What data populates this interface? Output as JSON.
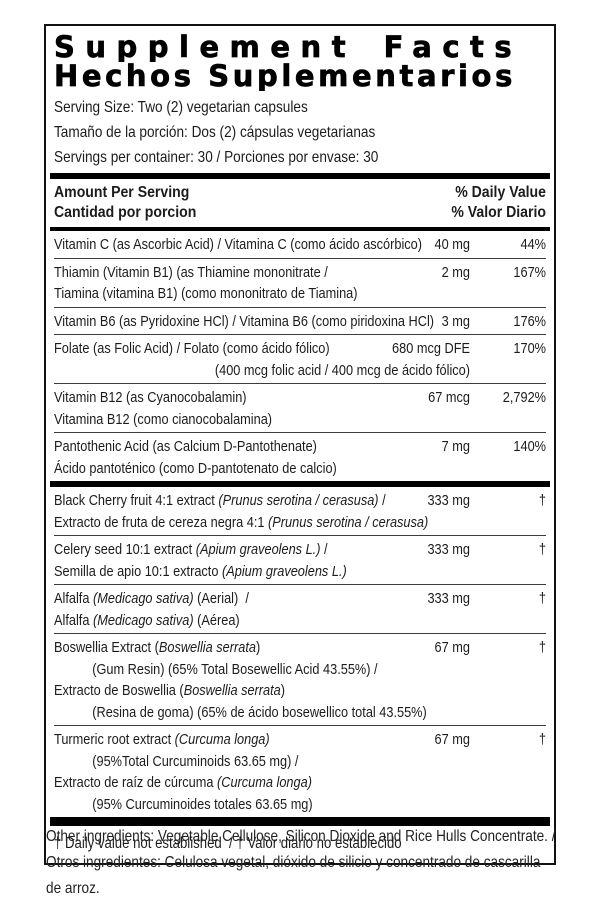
{
  "colors": {
    "ink": "#000000",
    "background": "#ffffff"
  },
  "title": {
    "line1": "Supplement Facts",
    "line2": "Hechos Suplementarios"
  },
  "serving": {
    "lines": [
      "Serving Size: Two (2) vegetarian capsules",
      "Tamaño de la porción: Dos (2) cápsulas vegetarianas",
      "Servings per container: 30 / Porciones por envase: 30"
    ]
  },
  "header": {
    "amount_en": "Amount Per Serving",
    "amount_es": "Cantidad por porcion",
    "dv_en": "% Daily Value",
    "dv_es": "% Valor Diario"
  },
  "sections": [
    {
      "rows": [
        {
          "lines": [
            {
              "segs": [
                {
                  "t": "Vitamin C (as Ascorbic Acid) / Vitamina C (como ácido ascórbico)"
                }
              ]
            }
          ],
          "amount": "40 mg",
          "pct": "44%"
        },
        {
          "lines": [
            {
              "segs": [
                {
                  "t": "Thiamin (Vitamin B1) (as Thiamine mononitrate /"
                }
              ]
            },
            {
              "segs": [
                {
                  "t": "Tiamina (vitamina B1) (como mononitrato de Tiamina)"
                }
              ]
            }
          ],
          "amount": "2 mg",
          "pct": "167%"
        },
        {
          "lines": [
            {
              "segs": [
                {
                  "t": "Vitamin B6 (as Pyridoxine HCl) / Vitamina B6 (como piridoxina HCl)"
                }
              ]
            }
          ],
          "amount": "3 mg",
          "pct": "176%"
        },
        {
          "lines": [
            {
              "segs": [
                {
                  "t": "Folate (as Folic Acid) / Folato (como ácido fólico)"
                }
              ]
            },
            {
              "segs": [
                {
                  "t": "(400 mcg folic acid / 400 mcg de ácido fólico)"
                }
              ],
              "align": "right"
            }
          ],
          "amount": "680 mcg DFE",
          "pct": "170%"
        },
        {
          "lines": [
            {
              "segs": [
                {
                  "t": "Vitamin B12 (as Cyanocobalamin)"
                }
              ]
            },
            {
              "segs": [
                {
                  "t": "Vitamina B12 (como cianocobalamina)"
                }
              ]
            }
          ],
          "amount": "67 mcg",
          "pct": "2,792%"
        },
        {
          "lines": [
            {
              "segs": [
                {
                  "t": "Pantothenic Acid (as Calcium D-Pantothenate)"
                }
              ]
            },
            {
              "segs": [
                {
                  "t": "Ácido pantoténico (como D-pantotenato de calcio)"
                }
              ]
            }
          ],
          "amount": "7 mg",
          "pct": "140%"
        }
      ]
    },
    {
      "rows": [
        {
          "lines": [
            {
              "segs": [
                {
                  "t": "Black Cherry fruit 4:1 extract "
                },
                {
                  "t": "(Prunus serotina / cerasusa)",
                  "i": true
                },
                {
                  "t": " /"
                }
              ]
            },
            {
              "segs": [
                {
                  "t": "Extracto de fruta de cereza negra 4:1 "
                },
                {
                  "t": "(Prunus serotina / cerasusa)",
                  "i": true
                }
              ]
            }
          ],
          "amount": "333 mg",
          "pct": "†"
        },
        {
          "lines": [
            {
              "segs": [
                {
                  "t": "Celery seed 10:1 extract "
                },
                {
                  "t": "(Apium graveolens L.)",
                  "i": true
                },
                {
                  "t": " /"
                }
              ]
            },
            {
              "segs": [
                {
                  "t": "Semilla de apio 10:1 extracto "
                },
                {
                  "t": "(Apium graveolens L.)",
                  "i": true
                }
              ]
            }
          ],
          "amount": "333 mg",
          "pct": "†"
        },
        {
          "lines": [
            {
              "segs": [
                {
                  "t": "Alfalfa "
                },
                {
                  "t": "(Medicago sativa)",
                  "i": true
                },
                {
                  "t": " (Aerial)  /"
                }
              ]
            },
            {
              "segs": [
                {
                  "t": "Alfalfa "
                },
                {
                  "t": "(Medicago sativa)",
                  "i": true
                },
                {
                  "t": " (Aérea)"
                }
              ]
            }
          ],
          "amount": "333 mg",
          "pct": "†"
        },
        {
          "lines": [
            {
              "segs": [
                {
                  "t": "Boswellia Extract ("
                },
                {
                  "t": "Boswellia serrata",
                  "i": true
                },
                {
                  "t": ")"
                }
              ]
            },
            {
              "segs": [
                {
                  "t": "(Gum Resin) (65% Total Bosewellic Acid 43.55%) /"
                }
              ],
              "indent": true
            },
            {
              "segs": [
                {
                  "t": "Extracto de Boswellia ("
                },
                {
                  "t": "Boswellia serrata",
                  "i": true
                },
                {
                  "t": ")"
                }
              ]
            },
            {
              "segs": [
                {
                  "t": "(Resina de goma) (65% de ácido bosewellico total 43.55%)"
                }
              ],
              "indent": true
            }
          ],
          "amount": "67 mg",
          "pct": "†"
        },
        {
          "lines": [
            {
              "segs": [
                {
                  "t": "Turmeric root extract "
                },
                {
                  "t": "(Curcuma longa)",
                  "i": true
                }
              ]
            },
            {
              "segs": [
                {
                  "t": "(95%Total Curcuminoids 63.65 mg) /"
                }
              ],
              "indent": true
            },
            {
              "segs": [
                {
                  "t": "Extracto de raíz de cúrcuma "
                },
                {
                  "t": "(Curcuma longa)",
                  "i": true
                }
              ]
            },
            {
              "segs": [
                {
                  "t": "(95% Curcuminoides totales 63.65 mg)"
                }
              ],
              "indent": true
            }
          ],
          "amount": "67 mg",
          "pct": "†"
        }
      ]
    }
  ],
  "footnote": "† Daily value not established  / † Valor diario no establecido",
  "other_ingredients": "Other ingredients: Vegetable Cellulose, Silicon Dioxide and Rice Hulls Concentrate. / Otros ingredientes: Celulosa vegetal, dióxido de silicio y concentrado de cascarilla de arroz."
}
